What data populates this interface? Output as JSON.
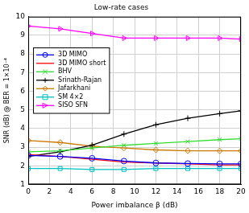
{
  "chart_data": {
    "type": "line",
    "title": "Low-rate cases",
    "x_label": "Power imbalance β (dB)",
    "y_label": "SNR (dB) @ BER = 1×10⁻⁴",
    "xlim": [
      0,
      20
    ],
    "xticks": [
      0,
      2,
      4,
      6,
      8,
      10,
      12,
      14,
      16,
      18,
      20
    ],
    "ylim": [
      1,
      10
    ],
    "yticks": [
      1,
      2,
      3,
      4,
      5,
      6,
      7,
      8,
      9,
      10
    ],
    "grid": true,
    "legend": "upper left",
    "x": [
      0,
      3,
      6,
      9,
      12,
      15,
      18,
      20
    ],
    "series": [
      {
        "name": "3D MIMO",
        "color": "#0000ff",
        "marker": "o",
        "values": [
          2.55,
          2.5,
          2.4,
          2.25,
          2.15,
          2.12,
          2.1,
          2.1
        ]
      },
      {
        "name": "3D MIMO short",
        "color": "#ff0000",
        "marker": "none",
        "values": [
          2.6,
          2.5,
          2.35,
          2.2,
          2.15,
          2.1,
          2.05,
          2.05
        ]
      },
      {
        "name": "BHV",
        "color": "#33dd33",
        "marker": "x",
        "values": [
          2.75,
          2.8,
          2.95,
          3.1,
          3.2,
          3.3,
          3.4,
          3.45
        ]
      },
      {
        "name": "Srinath-Rajan",
        "color": "#000000",
        "marker": "+",
        "values": [
          2.5,
          2.75,
          3.1,
          3.7,
          4.2,
          4.55,
          4.8,
          4.95
        ]
      },
      {
        "name": "Jafarkhani",
        "color": "#cc7a00",
        "marker": "d",
        "values": [
          3.35,
          3.25,
          3.05,
          2.95,
          2.85,
          2.8,
          2.8,
          2.8
        ]
      },
      {
        "name": "SM 4×2",
        "color": "#00bfbf",
        "marker": "s",
        "values": [
          1.85,
          1.85,
          1.8,
          1.8,
          1.85,
          1.85,
          1.85,
          1.85
        ]
      },
      {
        "name": "SISO SFN",
        "color": "#ff00ff",
        "marker": ">",
        "values": [
          9.5,
          9.35,
          9.1,
          8.85,
          8.85,
          8.85,
          8.85,
          8.8
        ]
      }
    ]
  }
}
